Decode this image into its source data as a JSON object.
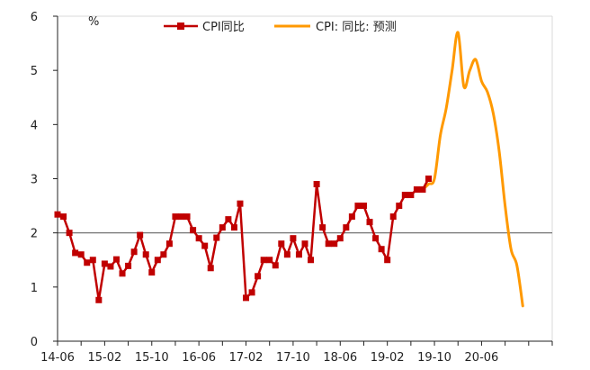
{
  "chart_data": {
    "type": "line",
    "unit_label": "%",
    "ylim": [
      0,
      6
    ],
    "yticks": [
      0,
      1,
      2,
      3,
      4,
      5,
      6
    ],
    "reference_line": 2,
    "x_tick_labels": [
      "14-06",
      "15-02",
      "15-10",
      "16-06",
      "17-02",
      "17-10",
      "18-06",
      "19-02",
      "19-10",
      "20-06"
    ],
    "x_tick_index": [
      0,
      8,
      16,
      24,
      32,
      40,
      48,
      56,
      64,
      72
    ],
    "x_total_periods": 84,
    "legend_position": "top-center",
    "series": [
      {
        "name": "CPI同比",
        "color": "#c00000",
        "marker": "square",
        "start_index": 0,
        "values": [
          2.34,
          2.3,
          2.0,
          1.63,
          1.6,
          1.45,
          1.5,
          0.76,
          1.43,
          1.38,
          1.51,
          1.25,
          1.39,
          1.65,
          1.96,
          1.6,
          1.27,
          1.5,
          1.6,
          1.8,
          2.3,
          2.3,
          2.3,
          2.05,
          1.9,
          1.76,
          1.35,
          1.91,
          2.1,
          2.25,
          2.1,
          2.54,
          0.8,
          0.9,
          1.2,
          1.5,
          1.5,
          1.4,
          1.8,
          1.6,
          1.9,
          1.6,
          1.8,
          1.5,
          2.9,
          2.1,
          1.8,
          1.8,
          1.9,
          2.1,
          2.3,
          2.5,
          2.5,
          2.2,
          1.9,
          1.7,
          1.5,
          2.3,
          2.5,
          2.7,
          2.7,
          2.8,
          2.8,
          3.0
        ]
      },
      {
        "name": "CPI: 同比: 预测",
        "color": "#ff9900",
        "marker": "none",
        "start_index": 62,
        "values": [
          2.8,
          2.9,
          3.0,
          3.8,
          4.3,
          5.0,
          5.7,
          4.7,
          5.0,
          5.2,
          4.8,
          4.6,
          4.2,
          3.5,
          2.5,
          1.7,
          1.4,
          0.65
        ]
      }
    ]
  }
}
